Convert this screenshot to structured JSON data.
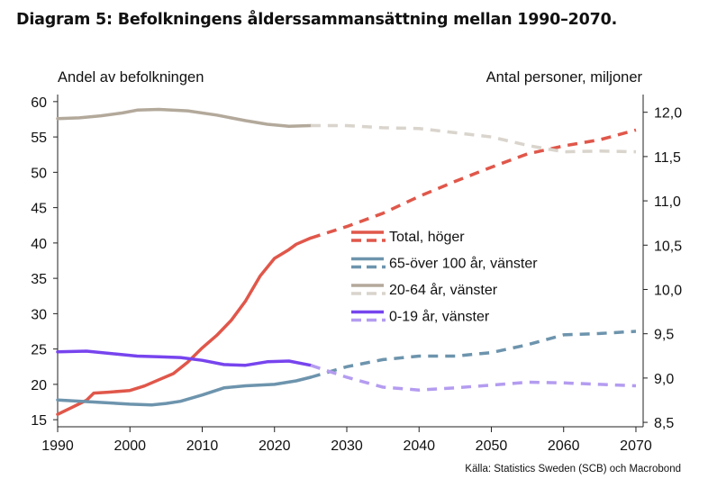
{
  "title": "Diagram 5: Befolkningens ålderssammansättning mellan 1990–2070.",
  "source": "Källa: Statistics Sweden (SCB) och Macrobond",
  "chart_data": {
    "type": "line",
    "left_axis_title": "Andel av befolkningen",
    "right_axis_title": "Antal personer, miljoner",
    "x_ticks": [
      "1990",
      "2000",
      "2010",
      "2020",
      "2030",
      "2040",
      "2050",
      "2060",
      "2070"
    ],
    "x_range": [
      1990,
      2071
    ],
    "left_ticks": [
      "15",
      "20",
      "25",
      "30",
      "35",
      "40",
      "45",
      "50",
      "55",
      "60"
    ],
    "left_range": [
      14,
      61
    ],
    "right_ticks": [
      "8,5",
      "9,0",
      "9,5",
      "10,0",
      "10,5",
      "11,0",
      "11,5",
      "12,0"
    ],
    "right_range": [
      8.45,
      12.2
    ],
    "grid": false,
    "legend_placement": "center",
    "forecast_start": 2025,
    "series": [
      {
        "name": "Total, höger",
        "axis": "right",
        "color": "#e0574a",
        "x": [
          1990,
          1992,
          1994,
          1995,
          1997,
          2000,
          2002,
          2004,
          2006,
          2008,
          2010,
          2012,
          2014,
          2016,
          2018,
          2020,
          2022,
          2023,
          2025,
          2030,
          2035,
          2040,
          2045,
          2050,
          2055,
          2060,
          2065,
          2070
        ],
        "y": [
          8.59,
          8.67,
          8.75,
          8.83,
          8.84,
          8.86,
          8.91,
          8.98,
          9.05,
          9.18,
          9.34,
          9.48,
          9.65,
          9.87,
          10.15,
          10.35,
          10.45,
          10.51,
          10.58,
          10.71,
          10.86,
          11.05,
          11.22,
          11.38,
          11.53,
          11.62,
          11.69,
          11.8
        ]
      },
      {
        "name": "65-över 100 år, vänster",
        "axis": "left",
        "color": "#6d94ad",
        "x": [
          1990,
          1995,
          2000,
          2003,
          2005,
          2007,
          2010,
          2013,
          2016,
          2020,
          2023,
          2025,
          2030,
          2035,
          2040,
          2045,
          2050,
          2055,
          2060,
          2065,
          2070
        ],
        "y": [
          17.8,
          17.5,
          17.2,
          17.1,
          17.3,
          17.6,
          18.5,
          19.5,
          19.8,
          20.0,
          20.5,
          21.0,
          22.5,
          23.5,
          24.0,
          24.0,
          24.5,
          25.6,
          27.0,
          27.2,
          27.5
        ]
      },
      {
        "name": "20-64 år, vänster",
        "axis": "left",
        "color": "#b3a99b",
        "forecast_color": "#d9d4cc",
        "x": [
          1990,
          1993,
          1996,
          1999,
          2001,
          2004,
          2008,
          2012,
          2016,
          2019,
          2022,
          2025,
          2030,
          2035,
          2040,
          2045,
          2050,
          2055,
          2060,
          2065,
          2070
        ],
        "y": [
          57.6,
          57.7,
          58.0,
          58.4,
          58.8,
          58.9,
          58.7,
          58.1,
          57.3,
          56.8,
          56.5,
          56.6,
          56.6,
          56.3,
          56.2,
          55.6,
          55.0,
          53.8,
          52.9,
          53.0,
          52.9
        ]
      },
      {
        "name": "0-19 år, vänster",
        "axis": "left",
        "color": "#7744ee",
        "forecast_color": "#b49cf0",
        "x": [
          1990,
          1994,
          1998,
          2001,
          2004,
          2007,
          2010,
          2013,
          2016,
          2019,
          2022,
          2025,
          2030,
          2035,
          2040,
          2045,
          2050,
          2055,
          2060,
          2065,
          2070
        ],
        "y": [
          24.6,
          24.7,
          24.3,
          24.0,
          23.9,
          23.8,
          23.4,
          22.8,
          22.7,
          23.2,
          23.3,
          22.7,
          21.0,
          19.6,
          19.2,
          19.5,
          19.9,
          20.3,
          20.2,
          20.0,
          19.8
        ]
      }
    ]
  }
}
